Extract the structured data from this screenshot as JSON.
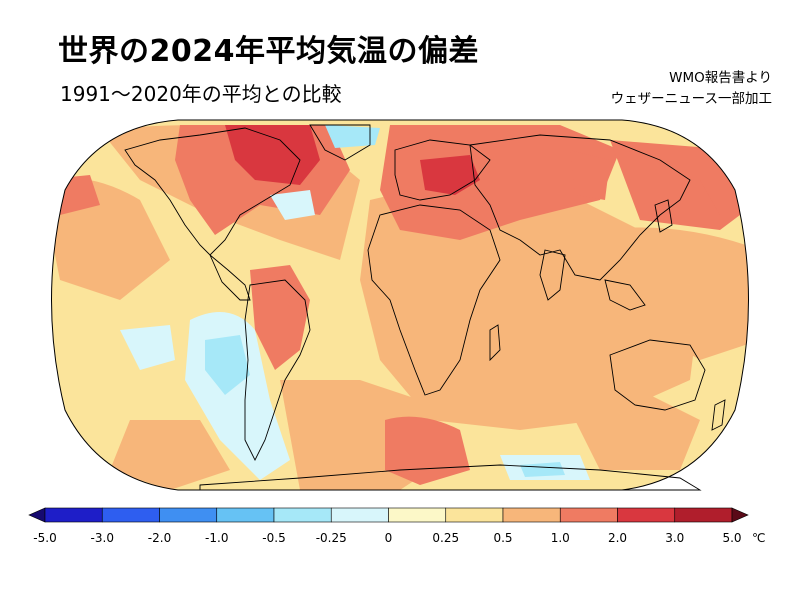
{
  "title": "世界の2024年平均気温の偏差",
  "subtitle": "1991～2020年の平均との比較",
  "source": {
    "line1": "WMO報告書より",
    "line2": "ウェザーニュース一部加工"
  },
  "legend": {
    "unit": "℃",
    "ticks": [
      "-5.0",
      "-3.0",
      "-2.0",
      "-1.0",
      "-0.5",
      "-0.25",
      "0",
      "0.25",
      "0.5",
      "1.0",
      "2.0",
      "3.0",
      "5.0"
    ],
    "bins": [
      {
        "color": "#1e1ec8"
      },
      {
        "color": "#2e5ef0"
      },
      {
        "color": "#3f8ff2"
      },
      {
        "color": "#66c2f4"
      },
      {
        "color": "#a6e8f8"
      },
      {
        "color": "#d8f6fb"
      },
      {
        "color": "#fcf8c8"
      },
      {
        "color": "#fbe49b"
      },
      {
        "color": "#f7b67a"
      },
      {
        "color": "#ef7b62"
      },
      {
        "color": "#d9373f"
      },
      {
        "color": "#b01e2c"
      }
    ],
    "under_color": "#160a70",
    "over_color": "#5a0a18"
  },
  "map": {
    "projection": "Robinson",
    "colors": {
      "background": "#fbe49b",
      "warm": "#f7b67a",
      "hot": "#ef7b62",
      "very_hot": "#d9373f",
      "extreme": "#b01e2c",
      "cool": "#d8f6fb",
      "cold": "#a6e8f8",
      "coast": "#000000"
    }
  }
}
